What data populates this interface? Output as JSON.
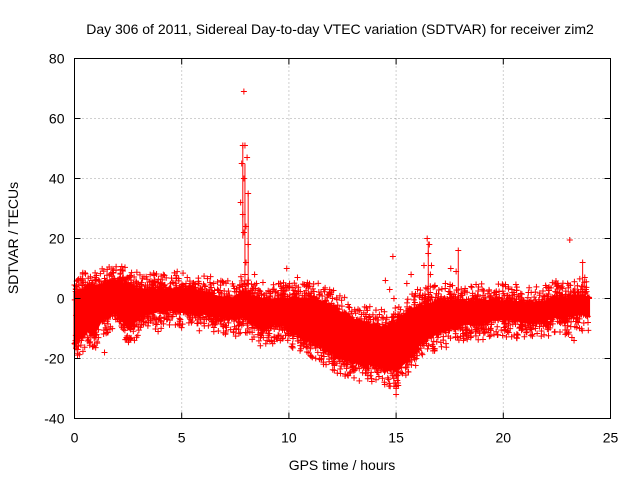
{
  "chart_data": {
    "type": "scatter",
    "title": "Day 306 of 2011, Sidereal Day-to-day VTEC variation (SDTVAR) for receiver zim2",
    "xlabel": "GPS time / hours",
    "ylabel": "SDTVAR / TECUs",
    "xlim": [
      0,
      25
    ],
    "ylim": [
      -40,
      80
    ],
    "x_ticks": [
      0,
      5,
      10,
      15,
      20,
      25
    ],
    "y_ticks": [
      -40,
      -20,
      0,
      20,
      40,
      60,
      80
    ],
    "x_tick_labels": [
      "0",
      "5",
      "10",
      "15",
      "20",
      "25"
    ],
    "y_tick_labels": [
      "-40",
      "-20",
      "0",
      "20",
      "40",
      "60",
      "80"
    ],
    "grid": true,
    "legend": "none",
    "series": [
      {
        "name": "SDTVAR",
        "color": "#ff0000",
        "marker": "plus",
        "envelope": {
          "x": [
            0.0,
            0.3,
            0.6,
            0.9,
            1.2,
            1.5,
            1.8,
            2.0,
            2.3,
            2.6,
            3.0,
            3.5,
            4.0,
            4.5,
            5.0,
            5.5,
            6.0,
            6.5,
            7.0,
            7.5,
            7.8,
            8.0,
            8.3,
            8.6,
            9.0,
            9.5,
            10.0,
            10.5,
            11.0,
            11.5,
            12.0,
            12.5,
            13.0,
            13.5,
            14.0,
            14.5,
            15.0,
            15.3,
            15.6,
            16.0,
            16.5,
            17.0,
            17.5,
            18.0,
            18.5,
            19.0,
            19.5,
            20.0,
            20.5,
            21.0,
            21.5,
            22.0,
            22.5,
            23.0,
            23.3,
            23.6,
            24.0
          ],
          "upper": [
            2,
            3,
            3,
            4,
            4,
            5,
            6,
            6,
            5,
            4,
            3,
            3,
            3,
            3,
            3,
            3,
            2,
            1,
            0,
            0,
            2,
            2,
            0,
            0,
            -1,
            0,
            0,
            0,
            0,
            -1,
            -3,
            -5,
            -7,
            -8,
            -9,
            -10,
            -8,
            -6,
            -4,
            -3,
            -2,
            -1,
            -1,
            -1,
            -1,
            -1,
            -1,
            -1,
            -1,
            -2,
            -2,
            -1,
            0,
            0,
            1,
            1,
            0
          ],
          "lower": [
            -15,
            -13,
            -10,
            -12,
            -8,
            -6,
            -5,
            -5,
            -8,
            -10,
            -6,
            -5,
            -4,
            -4,
            -4,
            -5,
            -5,
            -6,
            -6,
            -7,
            -6,
            -6,
            -8,
            -10,
            -10,
            -8,
            -10,
            -12,
            -14,
            -16,
            -18,
            -20,
            -21,
            -22,
            -22,
            -23,
            -24,
            -22,
            -20,
            -16,
            -13,
            -11,
            -10,
            -9,
            -8,
            -8,
            -7,
            -7,
            -7,
            -8,
            -8,
            -7,
            -6,
            -6,
            -5,
            -5,
            -6
          ]
        },
        "scatter_density": 2600,
        "outliers": [
          {
            "x": 7.9,
            "y": 69
          },
          {
            "x": 7.85,
            "y": 51
          },
          {
            "x": 7.95,
            "y": 51
          },
          {
            "x": 8.05,
            "y": 47
          },
          {
            "x": 7.8,
            "y": 45
          },
          {
            "x": 7.9,
            "y": 40
          },
          {
            "x": 8.1,
            "y": 35
          },
          {
            "x": 7.75,
            "y": 32
          },
          {
            "x": 7.85,
            "y": 28
          },
          {
            "x": 8.0,
            "y": 24
          },
          {
            "x": 7.9,
            "y": 22
          },
          {
            "x": 8.1,
            "y": 18
          },
          {
            "x": 8.0,
            "y": 12
          },
          {
            "x": 7.95,
            "y": 8
          },
          {
            "x": 8.05,
            "y": 5
          },
          {
            "x": 0.95,
            "y": 7
          },
          {
            "x": 0.2,
            "y": 1
          },
          {
            "x": 0.05,
            "y": -14
          },
          {
            "x": 0.15,
            "y": -17
          },
          {
            "x": 0.9,
            "y": -16
          },
          {
            "x": 1.4,
            "y": -18
          },
          {
            "x": 2.6,
            "y": -10
          },
          {
            "x": 3.9,
            "y": -11
          },
          {
            "x": 5.2,
            "y": 5
          },
          {
            "x": 6.1,
            "y": 4
          },
          {
            "x": 6.7,
            "y": -7
          },
          {
            "x": 8.4,
            "y": 8
          },
          {
            "x": 8.9,
            "y": -9
          },
          {
            "x": 9.6,
            "y": -14
          },
          {
            "x": 9.9,
            "y": 10
          },
          {
            "x": 10.4,
            "y": 7
          },
          {
            "x": 10.9,
            "y": 4
          },
          {
            "x": 11.4,
            "y": -15
          },
          {
            "x": 11.9,
            "y": 2
          },
          {
            "x": 12.6,
            "y": -14
          },
          {
            "x": 13.1,
            "y": -18
          },
          {
            "x": 13.3,
            "y": -4
          },
          {
            "x": 13.8,
            "y": -7
          },
          {
            "x": 13.4,
            "y": -13
          },
          {
            "x": 14.2,
            "y": -26
          },
          {
            "x": 14.5,
            "y": 6
          },
          {
            "x": 14.7,
            "y": 3
          },
          {
            "x": 14.85,
            "y": 14
          },
          {
            "x": 14.8,
            "y": -23
          },
          {
            "x": 14.9,
            "y": 0
          },
          {
            "x": 15.0,
            "y": -32
          },
          {
            "x": 15.1,
            "y": -29
          },
          {
            "x": 15.3,
            "y": -25
          },
          {
            "x": 15.5,
            "y": 5
          },
          {
            "x": 15.7,
            "y": 8
          },
          {
            "x": 16.0,
            "y": 3
          },
          {
            "x": 16.3,
            "y": 11
          },
          {
            "x": 16.45,
            "y": 20
          },
          {
            "x": 16.55,
            "y": 18
          },
          {
            "x": 16.5,
            "y": 15
          },
          {
            "x": 16.65,
            "y": 11
          },
          {
            "x": 16.6,
            "y": 8
          },
          {
            "x": 16.8,
            "y": 4
          },
          {
            "x": 17.3,
            "y": 5
          },
          {
            "x": 17.55,
            "y": 10
          },
          {
            "x": 17.8,
            "y": 9
          },
          {
            "x": 17.9,
            "y": 16
          },
          {
            "x": 18.5,
            "y": 4
          },
          {
            "x": 19.6,
            "y": 2
          },
          {
            "x": 20.4,
            "y": 3
          },
          {
            "x": 21.3,
            "y": 2
          },
          {
            "x": 21.5,
            "y": -10
          },
          {
            "x": 23.0,
            "y": 5
          },
          {
            "x": 23.1,
            "y": 19.5
          },
          {
            "x": 23.2,
            "y": -13
          },
          {
            "x": 23.3,
            "y": -14
          },
          {
            "x": 23.5,
            "y": -4
          },
          {
            "x": 23.7,
            "y": 12
          },
          {
            "x": 23.8,
            "y": 7
          },
          {
            "x": 23.85,
            "y": 3
          },
          {
            "x": 24.0,
            "y": 0
          },
          {
            "x": 23.95,
            "y": -8
          },
          {
            "x": 23.5,
            "y": -8
          }
        ]
      }
    ]
  }
}
